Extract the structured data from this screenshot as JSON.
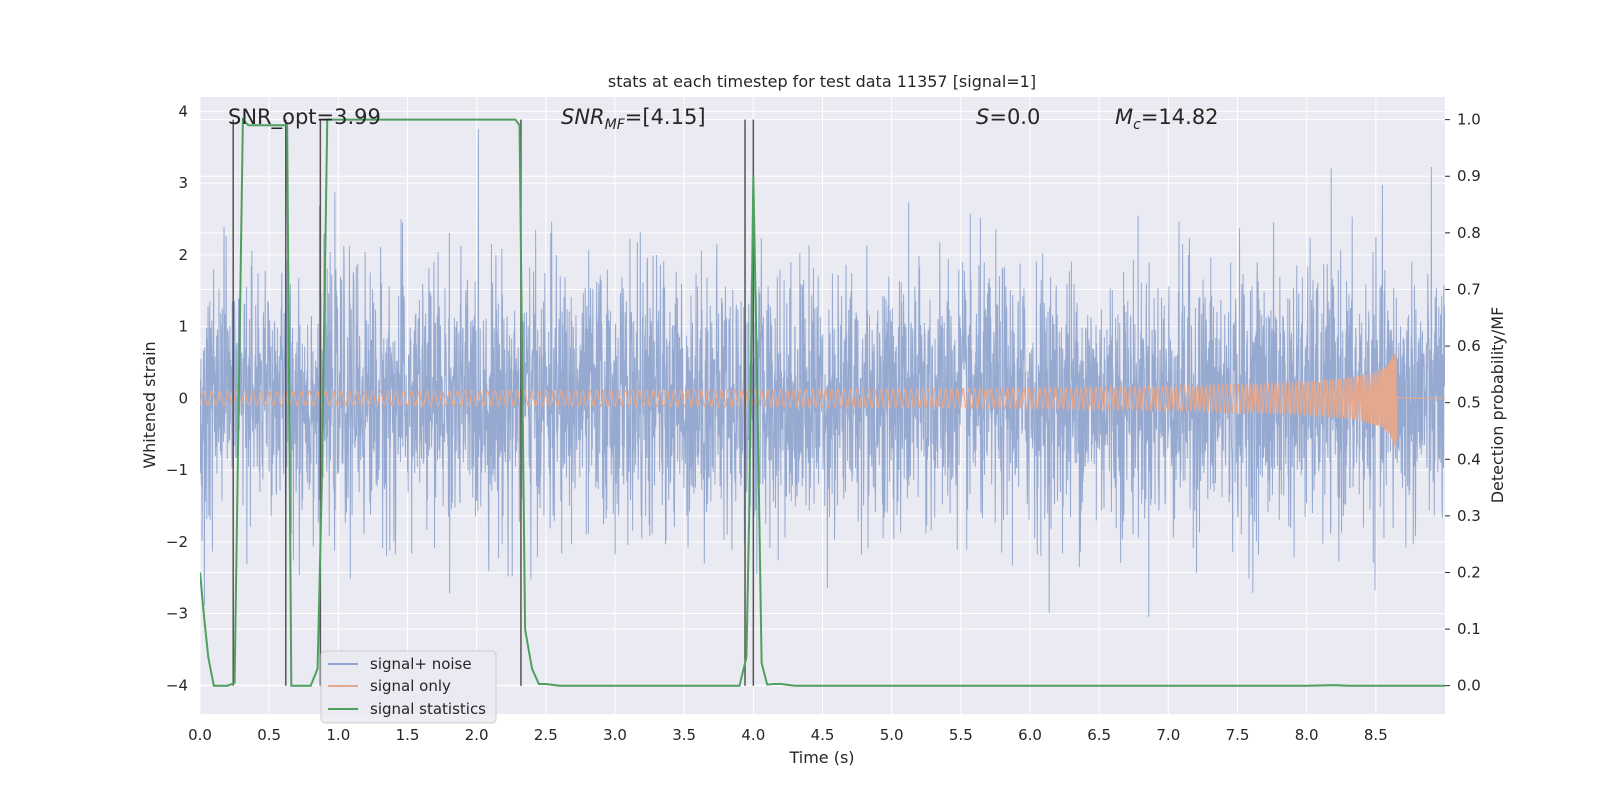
{
  "chart_data": {
    "type": "line",
    "title": "stats at each timestep for test data 11357 [signal=1]",
    "xlabel": "Time (s)",
    "ylabel_left": "Whitened strain",
    "ylabel_right": "Detection probability/MF",
    "xlim": [
      0.0,
      9.0
    ],
    "ylim_left": [
      -4.4,
      4.2
    ],
    "ylim_right": [
      -0.05,
      1.04
    ],
    "xticks": [
      "0.0",
      "0.5",
      "1.0",
      "1.5",
      "2.0",
      "2.5",
      "3.0",
      "3.5",
      "4.0",
      "4.5",
      "5.0",
      "5.5",
      "6.0",
      "6.5",
      "7.0",
      "7.5",
      "8.0",
      "8.5"
    ],
    "yticks_left": [
      "−4",
      "−3",
      "−2",
      "−1",
      "0",
      "1",
      "2",
      "3",
      "4"
    ],
    "yticks_right": [
      "0.0",
      "0.1",
      "0.2",
      "0.3",
      "0.4",
      "0.5",
      "0.6",
      "0.7",
      "0.8",
      "0.9",
      "1.0"
    ],
    "grid": true,
    "legend_position": "lower-left",
    "annotations": {
      "snr_opt": "SNR_opt=3.99",
      "snr_mf_main": "SNR",
      "snr_mf_sub": "MF",
      "snr_mf_value": "=[4.15]",
      "s_main": "S",
      "s_value": "=0.0",
      "mc_main": "M",
      "mc_sub": "c",
      "mc_value": "=14.82"
    },
    "series": [
      {
        "name": "signal+ noise",
        "color": "#91a6cf",
        "description_level": "gaussian noise, std ~0.85, range approx -4 to 3.7"
      },
      {
        "name": "signal only",
        "color": "#e4a88f",
        "chirp_end_time": 8.65,
        "chirp_peak_amplitude": 0.85
      },
      {
        "name": "signal statistics",
        "color": "#4f9f5f",
        "x": [
          0.0,
          0.03,
          0.06,
          0.1,
          0.15,
          0.2,
          0.25,
          0.28,
          0.31,
          0.35,
          0.4,
          0.45,
          0.5,
          0.55,
          0.6,
          0.63,
          0.66,
          0.7,
          0.75,
          0.8,
          0.85,
          0.88,
          0.92,
          0.95,
          1.0,
          1.5,
          2.0,
          2.28,
          2.31,
          2.35,
          2.4,
          2.45,
          2.5,
          2.6,
          3.0,
          3.5,
          3.9,
          3.95,
          3.97,
          4.0,
          4.03,
          4.06,
          4.1,
          4.15,
          4.2,
          4.3,
          4.4,
          5.0,
          6.0,
          7.0,
          8.0,
          8.2,
          8.3,
          9.0
        ],
        "y": [
          0.2,
          0.12,
          0.05,
          0.0,
          0.0,
          0.0,
          0.005,
          0.5,
          1.0,
          0.99,
          0.99,
          0.99,
          0.99,
          0.99,
          0.99,
          0.99,
          0.0,
          0.0,
          0.0,
          0.0,
          0.03,
          0.35,
          1.0,
          1.0,
          1.0,
          1.0,
          1.0,
          1.0,
          0.99,
          0.1,
          0.03,
          0.003,
          0.003,
          0.0,
          0.0,
          0.0,
          0.0,
          0.05,
          0.3,
          0.9,
          0.5,
          0.04,
          0.002,
          0.003,
          0.003,
          0.0,
          0.0,
          0.0,
          0.0,
          0.0,
          0.0,
          0.001,
          0.0,
          0.0
        ]
      }
    ],
    "vertical_markers_time": [
      0.24,
      0.62,
      0.87,
      2.32,
      3.94,
      4.0
    ]
  }
}
